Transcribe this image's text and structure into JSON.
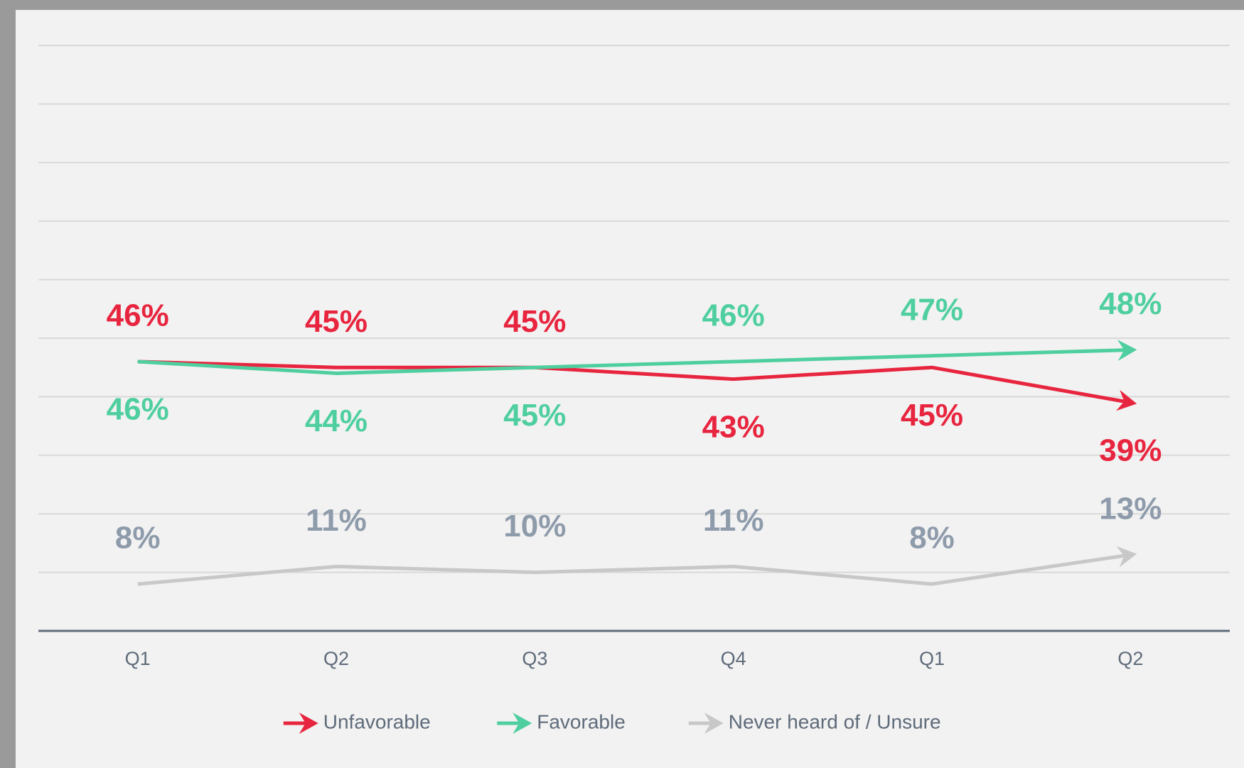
{
  "chart_data": {
    "type": "line",
    "categories": [
      "Q1",
      "Q2",
      "Q3",
      "Q4",
      "Q1",
      "Q2"
    ],
    "series": [
      {
        "name": "Unfavorable",
        "color": "#e8253f",
        "label_color": "#e8253f",
        "values": [
          46,
          45,
          45,
          43,
          45,
          39
        ],
        "value_labels": [
          "46%",
          "45%",
          "45%",
          "43%",
          "45%",
          "39%"
        ]
      },
      {
        "name": "Favorable",
        "color": "#4fcf9f",
        "label_color": "#4fcf9f",
        "values": [
          46,
          44,
          45,
          46,
          47,
          48
        ],
        "value_labels": [
          "46%",
          "44%",
          "45%",
          "46%",
          "47%",
          "48%"
        ]
      },
      {
        "name": "Never heard of / Unsure",
        "color": "#c8c8c8",
        "label_color": "#8e9bab",
        "values": [
          8,
          11,
          10,
          11,
          8,
          13
        ],
        "value_labels": [
          "8%",
          "11%",
          "10%",
          "11%",
          "8%",
          "13%"
        ]
      }
    ],
    "ylim": [
      0,
      100
    ],
    "yticks": [
      0,
      10,
      20,
      30,
      40,
      50,
      60,
      70,
      80,
      90,
      100
    ],
    "grid": true,
    "legend": "bottom"
  }
}
